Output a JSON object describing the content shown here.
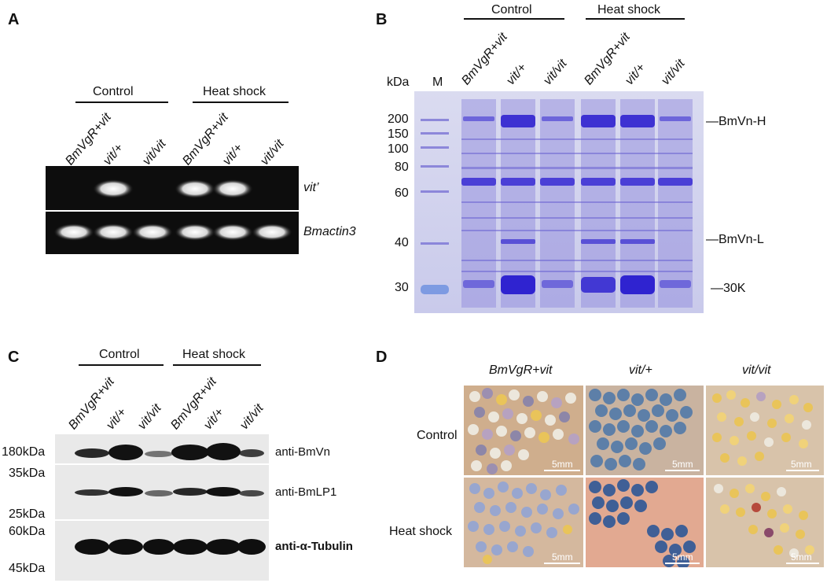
{
  "panels": {
    "A": {
      "label": "A",
      "groups": [
        "Control",
        "Heat shock"
      ],
      "lanes": [
        "BmVgR+vit",
        "vit/+",
        "vit/vit",
        "BmVgR+vit",
        "vit/+",
        "vit/vit"
      ],
      "bands": [
        "vit’",
        "Bmactin3"
      ]
    },
    "B": {
      "label": "B",
      "groups": [
        "Control",
        "Heat shock"
      ],
      "kda_label": "kDa",
      "marker_label": "M",
      "lanes": [
        "BmVgR+vit",
        "vit/+",
        "vit/vit",
        "BmVgR+vit",
        "vit/+",
        "vit/vit"
      ],
      "markers": [
        "200",
        "150",
        "100",
        "80",
        "60",
        "40",
        "30"
      ],
      "annotations": [
        "—BmVn-H",
        "—BmVn-L",
        "—30K"
      ]
    },
    "C": {
      "label": "C",
      "groups": [
        "Control",
        "Heat shock"
      ],
      "lanes": [
        "BmVgR+vit",
        "vit/+",
        "vit/vit",
        "BmVgR+vit",
        "vit/+",
        "vit/vit"
      ],
      "markers": [
        "180kDa",
        "35kDa",
        "25kDa",
        "60kDa",
        "45kDa"
      ],
      "antibodies": [
        "anti-BmVn",
        "anti-BmLP1",
        "anti-α-Tubulin"
      ]
    },
    "D": {
      "label": "D",
      "columns": [
        "BmVgR+vit",
        "vit/+",
        "vit/vit"
      ],
      "rows": [
        "Control",
        "Heat shock"
      ],
      "scale": "5mm"
    }
  },
  "colors": {
    "gel_dark": "#0d0d0d",
    "band_white": "#f2f2f2",
    "coomassie_bg": "#cfd0ec",
    "coomassie_band": "#4a3fd6",
    "blot_bg": "#e8e8e8",
    "blot_band": "#121212",
    "egg_blue": "#5d7fa8",
    "egg_yellow": "#e9c45a",
    "egg_white": "#ece7dc",
    "egg_bg": "#c8a888"
  }
}
